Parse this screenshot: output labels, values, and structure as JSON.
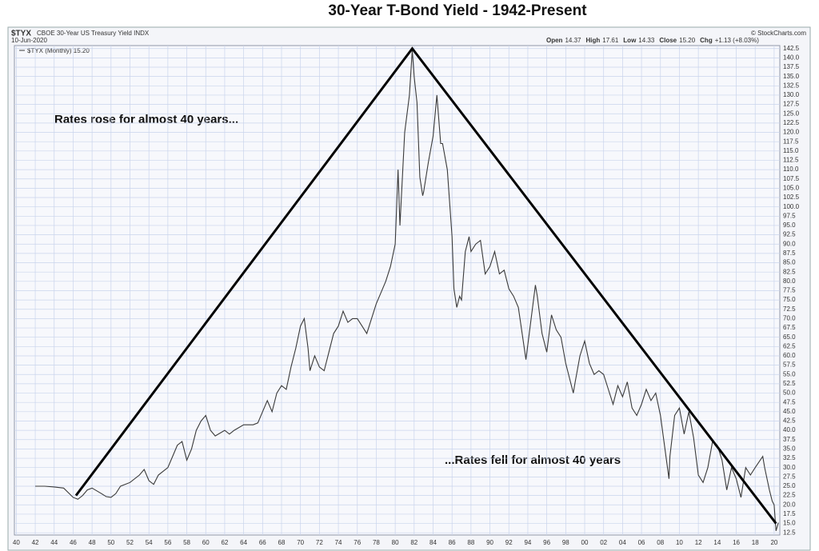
{
  "chart_data": {
    "type": "line",
    "title": "30-Year T-Bond Yield - 1942-Present",
    "header": {
      "symbol": "$TYX",
      "description": "CBOE 30-Year US Treasury Yield INDX",
      "date": "10-Jun-2020",
      "source": "© StockCharts.com"
    },
    "quote": [
      {
        "label": "Open",
        "value": "14.37"
      },
      {
        "label": "High",
        "value": "17.61"
      },
      {
        "label": "Low",
        "value": "14.33"
      },
      {
        "label": "Close",
        "value": "15.20"
      },
      {
        "label": "Chg",
        "value": "+1.13 (+8.03%)"
      }
    ],
    "annotations": [
      "Rates rose for almost 40 years...",
      "...Rates fell for almost 40 years"
    ],
    "x": [
      1942,
      1943,
      1944,
      1945,
      1946,
      1946.5,
      1947,
      1947.5,
      1948,
      1949,
      1949.5,
      1950,
      1950.5,
      1951,
      1952,
      1953,
      1953.5,
      1954,
      1954.5,
      1955,
      1956,
      1956.5,
      1957,
      1957.5,
      1958,
      1958.5,
      1959,
      1959.5,
      1960,
      1960.5,
      1961,
      1962,
      1962.5,
      1963,
      1964,
      1965,
      1965.5,
      1966,
      1966.5,
      1967,
      1967.5,
      1968,
      1968.5,
      1969,
      1969.5,
      1970,
      1970.4,
      1970.8,
      1971,
      1971.5,
      1972,
      1972.5,
      1973,
      1973.5,
      1974,
      1974.5,
      1975,
      1975.5,
      1976,
      1976.5,
      1977,
      1977.5,
      1978,
      1978.5,
      1979,
      1979.5,
      1980,
      1980.3,
      1980.5,
      1980.8,
      1981,
      1981.5,
      1981.8,
      1982,
      1982.3,
      1982.6,
      1982.9,
      1983,
      1983.5,
      1984,
      1984.4,
      1984.8,
      1985,
      1985.5,
      1986,
      1986.2,
      1986.5,
      1986.8,
      1987,
      1987.4,
      1987.8,
      1988,
      1988.5,
      1989,
      1989.5,
      1990,
      1990.5,
      1991,
      1991.5,
      1992,
      1992.5,
      1993,
      1993.8,
      1994,
      1994.8,
      1995,
      1995.5,
      1996,
      1996.5,
      1997,
      1997.5,
      1998,
      1998.8,
      1999,
      1999.5,
      2000,
      2000.5,
      2001,
      2001.5,
      2002,
      2002.5,
      2003,
      2003.5,
      2004,
      2004.5,
      2005,
      2005.5,
      2006,
      2006.5,
      2007,
      2007.5,
      2008,
      2008.9,
      2009,
      2009.5,
      2010,
      2010.5,
      2011,
      2011.5,
      2012,
      2012.5,
      2013,
      2013.5,
      2014,
      2014.5,
      2015,
      2015.5,
      2016,
      2016.5,
      2017,
      2017.5,
      2018,
      2018.8,
      2019,
      2019.5,
      2019.8,
      2020,
      2020.2,
      2020.45
    ],
    "series": [
      {
        "name": "$TYX (Monthly) 15.20",
        "color": "#3a3a3a",
        "values": [
          25,
          25,
          24.8,
          24.5,
          22,
          21.5,
          22.5,
          24,
          24.5,
          23,
          22.2,
          22,
          23,
          25,
          26,
          28,
          29.5,
          26.5,
          25.5,
          28,
          30,
          33,
          36,
          37,
          32,
          35,
          40,
          42.5,
          44,
          40,
          38.5,
          40,
          39,
          40,
          41.5,
          41.5,
          42,
          45,
          48,
          45,
          50,
          52,
          51,
          57,
          62,
          68,
          70,
          62,
          56,
          60,
          57,
          56,
          61,
          66,
          68,
          72,
          69,
          70,
          70,
          68,
          66,
          70,
          74,
          77,
          80,
          84,
          90,
          110,
          95,
          110,
          120,
          130,
          142,
          135,
          128,
          108,
          103,
          104,
          112,
          119,
          130,
          117,
          117,
          110,
          92,
          78,
          73,
          76,
          75,
          88,
          92,
          88,
          90,
          91,
          82,
          84,
          88,
          82,
          83,
          78,
          76,
          73,
          59,
          63,
          79,
          76,
          66,
          61,
          71,
          67,
          65,
          58,
          50,
          53,
          60,
          64,
          58,
          55,
          56,
          55,
          51,
          47,
          52,
          49,
          53,
          46,
          44,
          47,
          51,
          48,
          50,
          44,
          27,
          33,
          44,
          46,
          39,
          45,
          38,
          28,
          26,
          30,
          37,
          36,
          32,
          24,
          30,
          27,
          22,
          30,
          28,
          30,
          33,
          30,
          24,
          21,
          20,
          13,
          15.2
        ]
      }
    ],
    "trend_line": {
      "x": [
        1946.3,
        1981.8,
        2020.2
      ],
      "values": [
        22.5,
        142.5,
        15
      ],
      "color": "#000000"
    },
    "xlim": [
      1939.8,
      2020.6
    ],
    "xticks": [
      {
        "value": 1940,
        "label": "40"
      },
      {
        "value": 1942,
        "label": "42"
      },
      {
        "value": 1944,
        "label": "44"
      },
      {
        "value": 1946,
        "label": "46"
      },
      {
        "value": 1948,
        "label": "48"
      },
      {
        "value": 1950,
        "label": "50"
      },
      {
        "value": 1952,
        "label": "52"
      },
      {
        "value": 1954,
        "label": "54"
      },
      {
        "value": 1956,
        "label": "56"
      },
      {
        "value": 1958,
        "label": "58"
      },
      {
        "value": 1960,
        "label": "60"
      },
      {
        "value": 1962,
        "label": "62"
      },
      {
        "value": 1964,
        "label": "64"
      },
      {
        "value": 1966,
        "label": "66"
      },
      {
        "value": 1968,
        "label": "68"
      },
      {
        "value": 1970,
        "label": "70"
      },
      {
        "value": 1972,
        "label": "72"
      },
      {
        "value": 1974,
        "label": "74"
      },
      {
        "value": 1976,
        "label": "76"
      },
      {
        "value": 1978,
        "label": "78"
      },
      {
        "value": 1980,
        "label": "80"
      },
      {
        "value": 1982,
        "label": "82"
      },
      {
        "value": 1984,
        "label": "84"
      },
      {
        "value": 1986,
        "label": "86"
      },
      {
        "value": 1988,
        "label": "88"
      },
      {
        "value": 1990,
        "label": "90"
      },
      {
        "value": 1992,
        "label": "92"
      },
      {
        "value": 1994,
        "label": "94"
      },
      {
        "value": 1996,
        "label": "96"
      },
      {
        "value": 1998,
        "label": "98"
      },
      {
        "value": 2000,
        "label": "00"
      },
      {
        "value": 2002,
        "label": "02"
      },
      {
        "value": 2004,
        "label": "04"
      },
      {
        "value": 2006,
        "label": "06"
      },
      {
        "value": 2008,
        "label": "08"
      },
      {
        "value": 2010,
        "label": "10"
      },
      {
        "value": 2012,
        "label": "12"
      },
      {
        "value": 2014,
        "label": "14"
      },
      {
        "value": 2016,
        "label": "16"
      },
      {
        "value": 2018,
        "label": "18"
      },
      {
        "value": 2020,
        "label": "20"
      }
    ],
    "ylim": [
      11.9,
      143.3
    ],
    "yticks": [
      12.5,
      {
        "value": 15,
        "label": "15.0"
      },
      17.5,
      {
        "value": 20,
        "label": "20.0"
      },
      22.5,
      {
        "value": 25,
        "label": "25.0"
      },
      27.5,
      {
        "value": 30,
        "label": "30.0"
      },
      32.5,
      {
        "value": 35,
        "label": "35.0"
      },
      37.5,
      {
        "value": 40,
        "label": "40.0"
      },
      42.5,
      {
        "value": 45,
        "label": "45.0"
      },
      47.5,
      {
        "value": 50,
        "label": "50.0"
      },
      52.5,
      {
        "value": 55,
        "label": "55.0"
      },
      57.5,
      {
        "value": 60,
        "label": "60.0"
      },
      62.5,
      {
        "value": 65,
        "label": "65.0"
      },
      67.5,
      {
        "value": 70,
        "label": "70.0"
      },
      72.5,
      {
        "value": 75,
        "label": "75.0"
      },
      77.5,
      {
        "value": 80,
        "label": "80.0"
      },
      82.5,
      {
        "value": 85,
        "label": "85.0"
      },
      87.5,
      {
        "value": 90,
        "label": "90.0"
      },
      92.5,
      {
        "value": 95,
        "label": "95.0"
      },
      97.5,
      {
        "value": 100,
        "label": "100.0"
      },
      102.5,
      {
        "value": 105,
        "label": "105.0"
      },
      107.5,
      {
        "value": 110,
        "label": "110.0"
      },
      112.5,
      {
        "value": 115,
        "label": "115.0"
      },
      117.5,
      {
        "value": 120,
        "label": "120.0"
      },
      122.5,
      {
        "value": 125,
        "label": "125.0"
      },
      127.5,
      {
        "value": 130,
        "label": "130.0"
      },
      132.5,
      {
        "value": 135,
        "label": "135.0"
      },
      137.5,
      {
        "value": 140,
        "label": "140.0"
      },
      142.5
    ],
    "grid": true
  }
}
